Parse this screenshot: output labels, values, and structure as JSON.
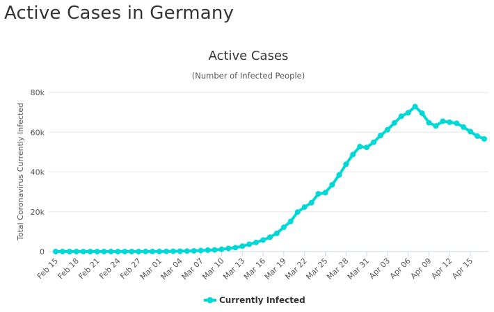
{
  "page": {
    "title": "Active Cases in Germany"
  },
  "chart_data": {
    "type": "line",
    "title": "Active Cases",
    "subtitle": "(Number of Infected People)",
    "xlabel": "",
    "ylabel": "Total Coronavirus Currently Infected",
    "ylim": [
      0,
      80000
    ],
    "yticks": [
      0,
      20000,
      40000,
      60000,
      80000
    ],
    "ytick_labels": [
      "0",
      "20k",
      "40k",
      "60k",
      "80k"
    ],
    "x_tick_labels": [
      "Feb 15",
      "Feb 18",
      "Feb 21",
      "Feb 24",
      "Feb 27",
      "Mar 01",
      "Mar 04",
      "Mar 07",
      "Mar 10",
      "Mar 13",
      "Mar 16",
      "Mar 19",
      "Mar 22",
      "Mar 25",
      "Mar 28",
      "Mar 31",
      "Apr 03",
      "Apr 06",
      "Apr 09",
      "Apr 12",
      "Apr 15"
    ],
    "x_tick_every": 3,
    "grid": true,
    "legend_position": "bottom-center",
    "colors": {
      "series": "#00d8d8",
      "grid": "#e6e6e6",
      "axis": "#ccd6eb"
    },
    "series": [
      {
        "name": "Currently Infected",
        "start_date": "Feb 15",
        "values": [
          16,
          16,
          16,
          16,
          16,
          16,
          16,
          16,
          16,
          16,
          16,
          16,
          16,
          27,
          46,
          46,
          111,
          129,
          158,
          240,
          349,
          534,
          684,
          847,
          1112,
          1565,
          1966,
          2698,
          3675,
          4585,
          5813,
          7188,
          9166,
          12194,
          15163,
          19848,
          22364,
          24513,
          29006,
          29586,
          33570,
          38453,
          43871,
          48781,
          52740,
          52351,
          54933,
          58350,
          61247,
          64647,
          68000,
          69800,
          72864,
          69566,
          64772,
          63167,
          65491,
          65000,
          64500,
          62578,
          60298,
          58037,
          56646
        ]
      }
    ]
  }
}
